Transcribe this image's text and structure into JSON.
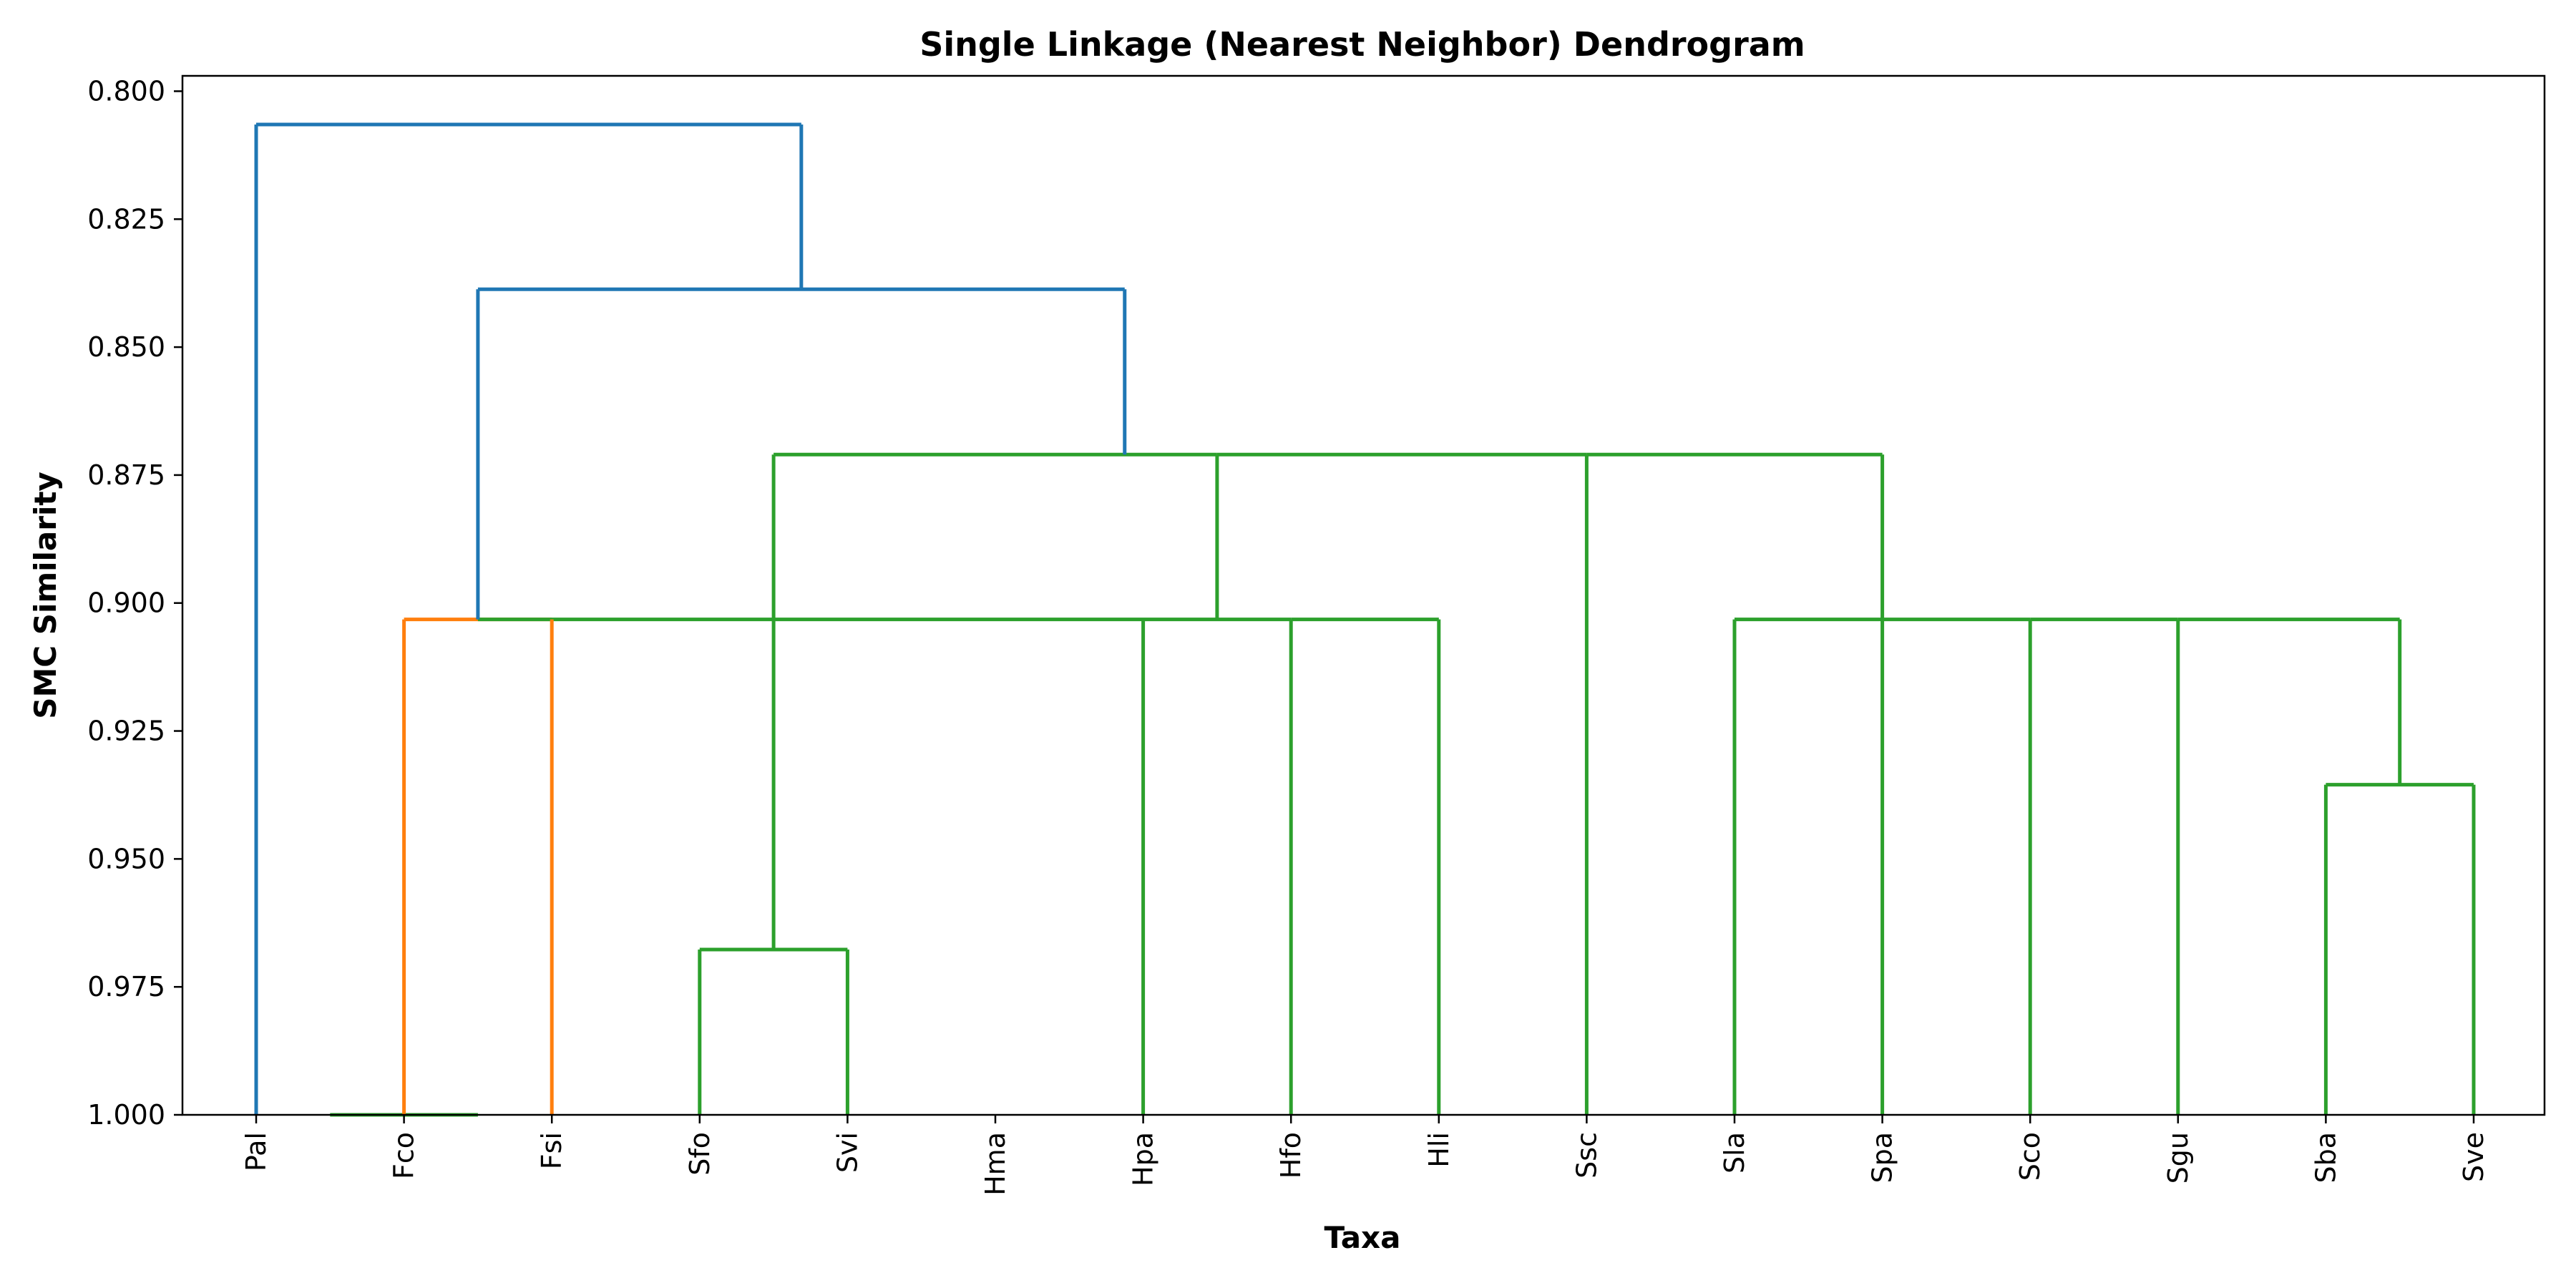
{
  "chart_data": {
    "type": "dendrogram",
    "title": "Single Linkage (Nearest Neighbor) Dendrogram",
    "xlabel": "Taxa",
    "ylabel": "SMC Similarity",
    "ylim": [
      1.0,
      0.797
    ],
    "y_ticks": [
      "0.800",
      "0.825",
      "0.850",
      "0.875",
      "0.900",
      "0.925",
      "0.950",
      "0.975",
      "1.000"
    ],
    "y_tick_values": [
      0.8,
      0.825,
      0.85,
      0.875,
      0.9,
      0.925,
      0.95,
      0.975,
      1.0
    ],
    "leaves": [
      "Pal",
      "Fco",
      "Fsi",
      "Sfo",
      "Svi",
      "Hma",
      "Hpa",
      "Hfo",
      "Hli",
      "Ssc",
      "Sla",
      "Spa",
      "Sco",
      "Sgu",
      "Sba",
      "Sve"
    ],
    "colors": {
      "blue": "#1f77b4",
      "orange": "#ff7f0e",
      "green": "#2ca02c"
    },
    "links": [
      {
        "x": [
          0.5,
          1.5
        ],
        "y": [
          1.0,
          1.0
        ],
        "color": "green"
      },
      {
        "x": [
          3.0,
          4.0
        ],
        "y": [
          0.9677,
          0.9677
        ],
        "color": "green"
      },
      {
        "x": [
          14.0,
          15.0
        ],
        "y": [
          0.9355,
          0.9355
        ],
        "color": "green"
      },
      {
        "x": [
          1.0,
          2.0
        ],
        "y": [
          0.9032,
          0.9032
        ],
        "color": "orange"
      },
      {
        "x": [
          1.5,
          7.0
        ],
        "y": [
          0.9032,
          0.9032
        ],
        "color": "green"
      },
      {
        "x": [
          7.0,
          8.0
        ],
        "y": [
          0.9032,
          0.9032
        ],
        "color": "green"
      },
      {
        "x": [
          10.0,
          11.0
        ],
        "y": [
          0.9032,
          0.9032
        ],
        "color": "green"
      },
      {
        "x": [
          11.0,
          12.0
        ],
        "y": [
          0.9032,
          0.9032
        ],
        "color": "green"
      },
      {
        "x": [
          12.0,
          13.0
        ],
        "y": [
          0.9032,
          0.9032
        ],
        "color": "green"
      },
      {
        "x": [
          13.0,
          14.5
        ],
        "y": [
          0.9032,
          0.9032
        ],
        "color": "green"
      },
      {
        "x": [
          3.5,
          6.5
        ],
        "y": [
          0.871,
          0.871
        ],
        "color": "green"
      },
      {
        "x": [
          6.5,
          9.0
        ],
        "y": [
          0.871,
          0.871
        ],
        "color": "green"
      },
      {
        "x": [
          9.0,
          11.0
        ],
        "y": [
          0.871,
          0.871
        ],
        "color": "green"
      },
      {
        "x": [
          1.5,
          5.875
        ],
        "y": [
          0.8387,
          0.8387
        ],
        "color": "blue"
      },
      {
        "x": [
          0.0,
          3.6875
        ],
        "y": [
          0.8065,
          0.8065
        ],
        "color": "blue"
      },
      {
        "x": [
          0.0,
          0.0
        ],
        "y": [
          1.0,
          0.8065
        ],
        "color": "blue"
      },
      {
        "x": [
          1.0,
          1.0
        ],
        "y": [
          1.0,
          0.9032
        ],
        "color": "orange"
      },
      {
        "x": [
          2.0,
          2.0
        ],
        "y": [
          1.0,
          0.9032
        ],
        "color": "orange"
      },
      {
        "x": [
          1.5,
          1.5
        ],
        "y": [
          0.9032,
          0.8387
        ],
        "color": "blue"
      },
      {
        "x": [
          3.0,
          3.0
        ],
        "y": [
          1.0,
          0.9677
        ],
        "color": "green"
      },
      {
        "x": [
          4.0,
          4.0
        ],
        "y": [
          1.0,
          0.9677
        ],
        "color": "green"
      },
      {
        "x": [
          3.5,
          3.5
        ],
        "y": [
          0.9677,
          0.871
        ],
        "color": "green"
      },
      {
        "x": [
          7.0,
          7.0
        ],
        "y": [
          1.0,
          0.9032
        ],
        "color": "green"
      },
      {
        "x": [
          8.0,
          8.0
        ],
        "y": [
          1.0,
          0.9032
        ],
        "color": "green"
      },
      {
        "x": [
          6.0,
          6.0
        ],
        "y": [
          1.0,
          0.9032
        ],
        "color": "green"
      },
      {
        "x": [
          6.5,
          6.5
        ],
        "y": [
          0.9032,
          0.871
        ],
        "color": "green"
      },
      {
        "x": [
          9.0,
          9.0
        ],
        "y": [
          1.0,
          0.871
        ],
        "color": "green"
      },
      {
        "x": [
          10.0,
          10.0
        ],
        "y": [
          1.0,
          0.9032
        ],
        "color": "green"
      },
      {
        "x": [
          11.0,
          11.0
        ],
        "y": [
          1.0,
          0.9032
        ],
        "color": "green"
      },
      {
        "x": [
          12.0,
          12.0
        ],
        "y": [
          1.0,
          0.9032
        ],
        "color": "green"
      },
      {
        "x": [
          13.0,
          13.0
        ],
        "y": [
          1.0,
          0.9032
        ],
        "color": "green"
      },
      {
        "x": [
          14.0,
          14.0
        ],
        "y": [
          1.0,
          0.9355
        ],
        "color": "green"
      },
      {
        "x": [
          15.0,
          15.0
        ],
        "y": [
          1.0,
          0.9355
        ],
        "color": "green"
      },
      {
        "x": [
          14.5,
          14.5
        ],
        "y": [
          0.9355,
          0.9032
        ],
        "color": "green"
      },
      {
        "x": [
          11.0,
          11.0
        ],
        "y": [
          0.9032,
          0.871
        ],
        "color": "green"
      },
      {
        "x": [
          5.875,
          5.875
        ],
        "y": [
          0.871,
          0.8387
        ],
        "color": "blue"
      },
      {
        "x": [
          3.6875,
          3.6875
        ],
        "y": [
          0.8387,
          0.8065
        ],
        "color": "blue"
      }
    ],
    "grid": false,
    "legend": "none"
  }
}
